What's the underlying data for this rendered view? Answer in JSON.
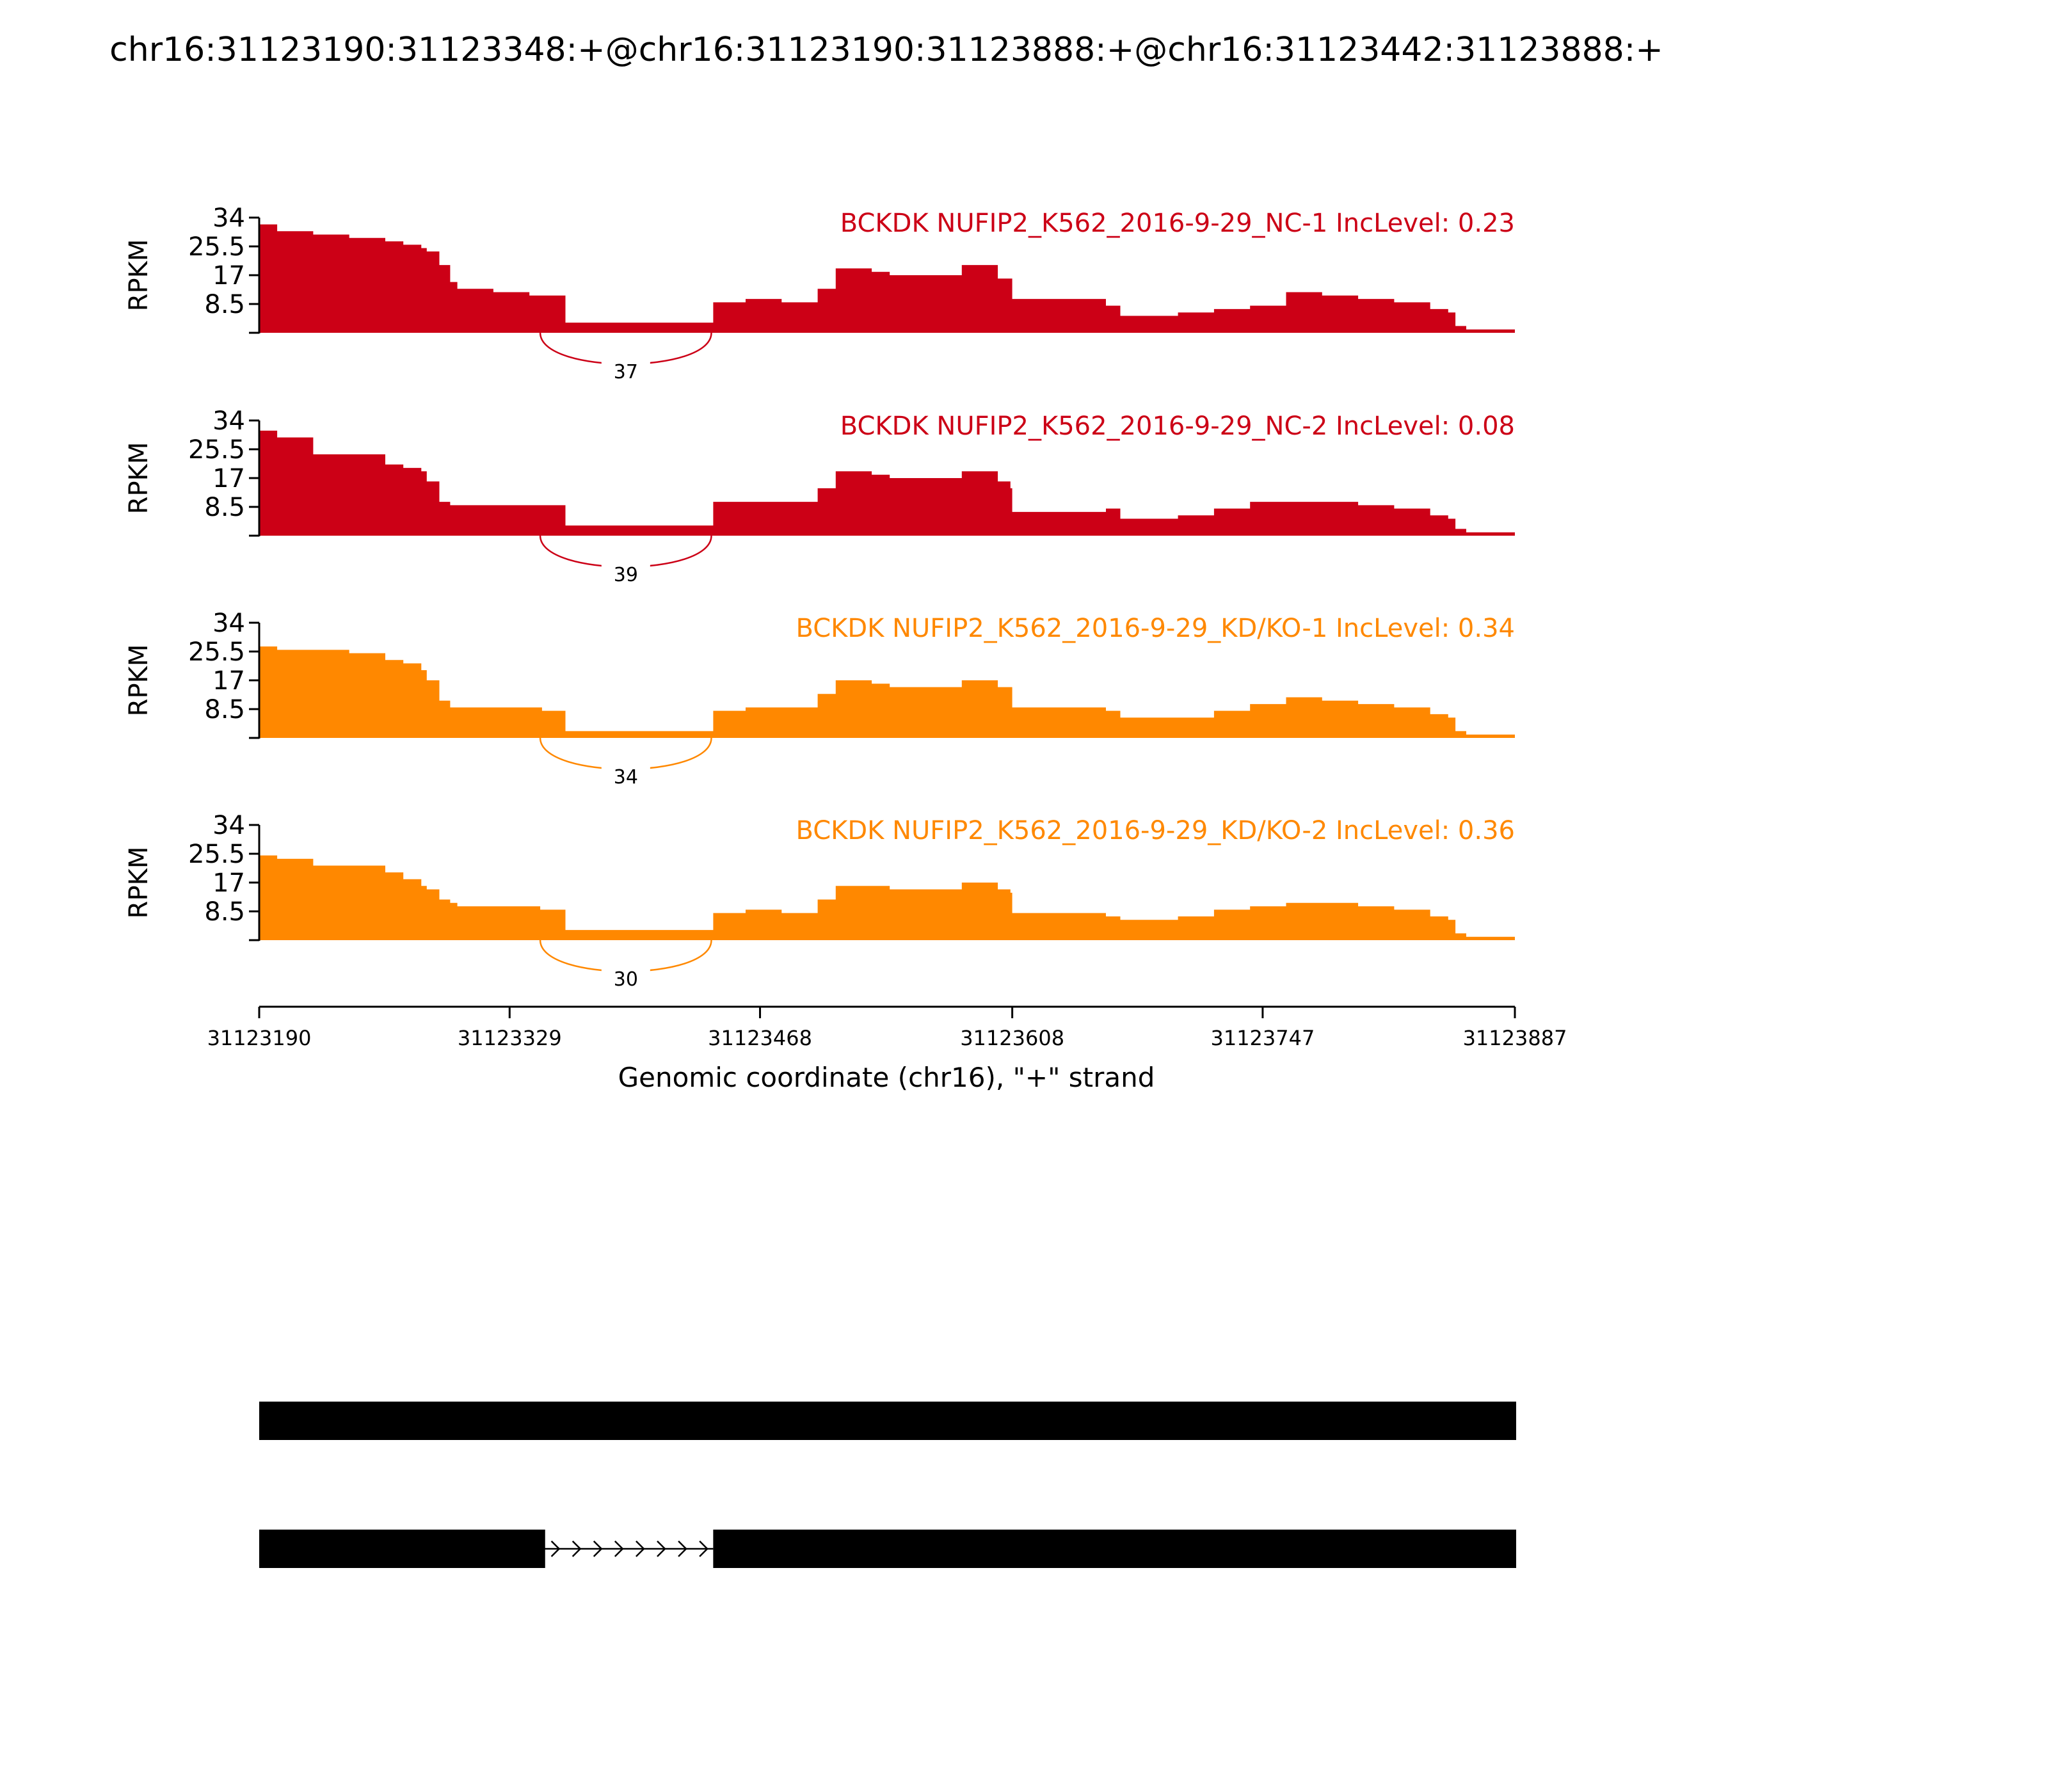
{
  "title": "chr16:31123190:31123348:+@chr16:31123190:31123888:+@chr16:31123442:31123888:+",
  "colors": {
    "group1": "#cc0016",
    "group2": "#ff8800",
    "axis": "#000000",
    "gene": "#000000"
  },
  "chart_data": {
    "type": "area",
    "ylabel": "RPKM",
    "yticks": [
      "34",
      "25.5",
      "17",
      "8.5"
    ],
    "ylim": [
      0,
      34
    ],
    "xlim": [
      31123190,
      31123887
    ],
    "xticks": [
      "31123190",
      "31123329",
      "31123468",
      "31123608",
      "31123747",
      "31123887"
    ],
    "xlabel": "Genomic coordinate (chr16), \"+\" strand",
    "x": [
      31123190,
      31123200,
      31123220,
      31123240,
      31123260,
      31123270,
      31123280,
      31123283,
      31123290,
      31123296,
      31123300,
      31123320,
      31123340,
      31123346,
      31123347,
      31123360,
      31123380,
      31123400,
      31123420,
      31123440,
      31123441,
      31123442,
      31123460,
      31123480,
      31123500,
      31123510,
      31123530,
      31123540,
      31123560,
      31123580,
      31123600,
      31123607,
      31123608,
      31123640,
      31123660,
      31123668,
      31123680,
      31123700,
      31123720,
      31123740,
      31123760,
      31123780,
      31123800,
      31123820,
      31123840,
      31123850,
      31123854,
      31123860,
      31123887
    ],
    "series": [
      {
        "name": "BCKDK NUFIP2_K562_2016-9-29_NC-1",
        "inc_level": "0.23",
        "color": "group1",
        "label": "BCKDK NUFIP2_K562_2016-9-29_NC-1 IncLevel: 0.23",
        "junction": {
          "count": "37",
          "start": 31123346,
          "end": 31123441
        },
        "values": [
          32,
          30,
          29,
          28,
          27,
          26,
          25,
          24,
          20,
          15,
          13,
          12,
          11,
          11,
          11,
          3,
          3,
          3,
          3,
          3,
          3,
          9,
          10,
          9,
          13,
          19,
          18,
          17,
          17,
          20,
          16,
          16,
          10,
          10,
          8,
          5,
          5,
          6,
          7,
          8,
          12,
          11,
          10,
          9,
          7,
          6,
          2,
          1,
          1
        ]
      },
      {
        "name": "BCKDK NUFIP2_K562_2016-9-29_NC-2",
        "inc_level": "0.08",
        "color": "group1",
        "label": "BCKDK NUFIP2_K562_2016-9-29_NC-2 IncLevel: 0.08",
        "junction": {
          "count": "39",
          "start": 31123346,
          "end": 31123441
        },
        "values": [
          31,
          29,
          24,
          24,
          21,
          20,
          19,
          16,
          10,
          9,
          9,
          9,
          9,
          9,
          9,
          3,
          3,
          3,
          3,
          3,
          3,
          10,
          10,
          10,
          14,
          19,
          18,
          17,
          17,
          19,
          16,
          14,
          7,
          7,
          8,
          5,
          5,
          6,
          8,
          10,
          10,
          10,
          9,
          8,
          6,
          5,
          2,
          1,
          1
        ]
      },
      {
        "name": "BCKDK NUFIP2_K562_2016-9-29_KD/KO-1",
        "inc_level": "0.34",
        "color": "group2",
        "label": "BCKDK NUFIP2_K562_2016-9-29_KD/KO-1 IncLevel: 0.34",
        "junction": {
          "count": "34",
          "start": 31123346,
          "end": 31123441
        },
        "values": [
          27,
          26,
          26,
          25,
          23,
          22,
          20,
          17,
          11,
          9,
          9,
          9,
          9,
          9,
          8,
          2,
          2,
          2,
          2,
          2,
          2,
          8,
          9,
          9,
          13,
          17,
          16,
          15,
          15,
          17,
          15,
          15,
          9,
          9,
          8,
          6,
          6,
          6,
          8,
          10,
          12,
          11,
          10,
          9,
          7,
          6,
          2,
          1,
          1
        ]
      },
      {
        "name": "BCKDK NUFIP2_K562_2016-9-29_KD/KO-2",
        "inc_level": "0.36",
        "color": "group2",
        "label": "BCKDK NUFIP2_K562_2016-9-29_KD/KO-2 IncLevel: 0.36",
        "junction": {
          "count": "30",
          "start": 31123346,
          "end": 31123441
        },
        "values": [
          25,
          24,
          22,
          22,
          20,
          18,
          16,
          15,
          12,
          11,
          10,
          10,
          10,
          9,
          9,
          3,
          3,
          3,
          3,
          3,
          3,
          8,
          9,
          8,
          12,
          16,
          16,
          15,
          15,
          17,
          15,
          14,
          8,
          8,
          7,
          6,
          6,
          7,
          9,
          10,
          11,
          11,
          10,
          9,
          7,
          6,
          2,
          1,
          1
        ]
      }
    ]
  },
  "gene_models": [
    {
      "exons": [
        [
          31123190,
          31123887
        ]
      ]
    },
    {
      "exons": [
        [
          31123190,
          31123348
        ],
        [
          31123442,
          31123887
        ]
      ]
    }
  ]
}
